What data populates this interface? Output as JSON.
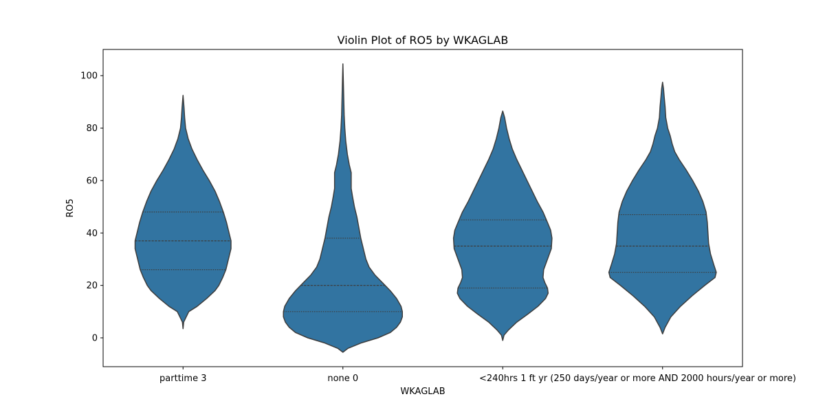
{
  "chart_data": {
    "type": "violin",
    "title": "Violin Plot of RO5 by WKAGLAB",
    "xlabel": "WKAGLAB",
    "ylabel": "RO5",
    "ylim": [
      -11,
      110
    ],
    "yticks": [
      0,
      20,
      40,
      60,
      80,
      100
    ],
    "grid": false,
    "inner": "quartile",
    "colors": {
      "fill": "#3274a1",
      "edge": "#3d3d3d",
      "axis": "#000000"
    },
    "categories": [
      "parttime 3",
      "none 0",
      "<240hrs 1",
      "ft yr (250 days/year or more AND 2000 hours/year or more)"
    ],
    "violins": [
      {
        "category": "parttime 3",
        "min": 3.5,
        "max": 92.5,
        "quartiles": [
          26,
          37,
          48
        ],
        "profile": [
          [
            3.5,
            0
          ],
          [
            6,
            1
          ],
          [
            10,
            9
          ],
          [
            12,
            22
          ],
          [
            15,
            37
          ],
          [
            18,
            50
          ],
          [
            20,
            56
          ],
          [
            23,
            62
          ],
          [
            26,
            67
          ],
          [
            30,
            71
          ],
          [
            34,
            75
          ],
          [
            37,
            75
          ],
          [
            40,
            72
          ],
          [
            44,
            68
          ],
          [
            48,
            63
          ],
          [
            52,
            57
          ],
          [
            56,
            50
          ],
          [
            60,
            41
          ],
          [
            64,
            31
          ],
          [
            68,
            22
          ],
          [
            72,
            14
          ],
          [
            76,
            8
          ],
          [
            80,
            4
          ],
          [
            84,
            2.5
          ],
          [
            88,
            1.5
          ],
          [
            92.5,
            0
          ]
        ]
      },
      {
        "category": "none 0",
        "min": -5.5,
        "max": 104.5,
        "quartiles": [
          10,
          20,
          38
        ],
        "profile": [
          [
            -5.5,
            0
          ],
          [
            -4,
            8
          ],
          [
            -2,
            28
          ],
          [
            0,
            55
          ],
          [
            2,
            74
          ],
          [
            4,
            84
          ],
          [
            6,
            90
          ],
          [
            8,
            93
          ],
          [
            10,
            93
          ],
          [
            12,
            91
          ],
          [
            15,
            84
          ],
          [
            18,
            74
          ],
          [
            21,
            62
          ],
          [
            24,
            50
          ],
          [
            27,
            41
          ],
          [
            30,
            36
          ],
          [
            34,
            32
          ],
          [
            38,
            28
          ],
          [
            42,
            25
          ],
          [
            46,
            22
          ],
          [
            50,
            18
          ],
          [
            54,
            15
          ],
          [
            57,
            13
          ],
          [
            60,
            13
          ],
          [
            63,
            13
          ],
          [
            66,
            10
          ],
          [
            70,
            7
          ],
          [
            75,
            4.5
          ],
          [
            80,
            3
          ],
          [
            85,
            2
          ],
          [
            90,
            1.5
          ],
          [
            95,
            1
          ],
          [
            100,
            0.5
          ],
          [
            104.5,
            0
          ]
        ]
      },
      {
        "category": "<240hrs 1",
        "min": -1,
        "max": 86.5,
        "quartiles": [
          19,
          35,
          45
        ],
        "profile": [
          [
            -1,
            0
          ],
          [
            1,
            2
          ],
          [
            3,
            9
          ],
          [
            6,
            22
          ],
          [
            9,
            39
          ],
          [
            12,
            55
          ],
          [
            15,
            67
          ],
          [
            17,
            71
          ],
          [
            19,
            70
          ],
          [
            21,
            66
          ],
          [
            23,
            63
          ],
          [
            26,
            64
          ],
          [
            30,
            70
          ],
          [
            34,
            76
          ],
          [
            38,
            77
          ],
          [
            41,
            75
          ],
          [
            44,
            70
          ],
          [
            48,
            63
          ],
          [
            52,
            54
          ],
          [
            56,
            46
          ],
          [
            60,
            38
          ],
          [
            64,
            30
          ],
          [
            68,
            22
          ],
          [
            72,
            15
          ],
          [
            76,
            10
          ],
          [
            80,
            6
          ],
          [
            84,
            3
          ],
          [
            86.5,
            0
          ]
        ]
      },
      {
        "category": "ft yr (250 days/year or more AND 2000 hours/year or more)",
        "min": 1.5,
        "max": 97.5,
        "quartiles": [
          25,
          35,
          47
        ],
        "profile": [
          [
            1.5,
            0
          ],
          [
            4,
            4
          ],
          [
            8,
            13
          ],
          [
            12,
            28
          ],
          [
            16,
            46
          ],
          [
            20,
            66
          ],
          [
            23,
            82
          ],
          [
            25,
            84
          ],
          [
            28,
            80
          ],
          [
            32,
            75
          ],
          [
            36,
            72
          ],
          [
            40,
            71
          ],
          [
            44,
            70
          ],
          [
            48,
            68
          ],
          [
            52,
            63
          ],
          [
            56,
            56
          ],
          [
            60,
            47
          ],
          [
            64,
            37
          ],
          [
            68,
            26
          ],
          [
            71,
            19
          ],
          [
            74,
            15
          ],
          [
            77,
            12
          ],
          [
            80,
            8
          ],
          [
            84,
            5
          ],
          [
            88,
            4
          ],
          [
            92,
            2.5
          ],
          [
            95,
            1.5
          ],
          [
            97.5,
            0
          ]
        ]
      }
    ]
  }
}
